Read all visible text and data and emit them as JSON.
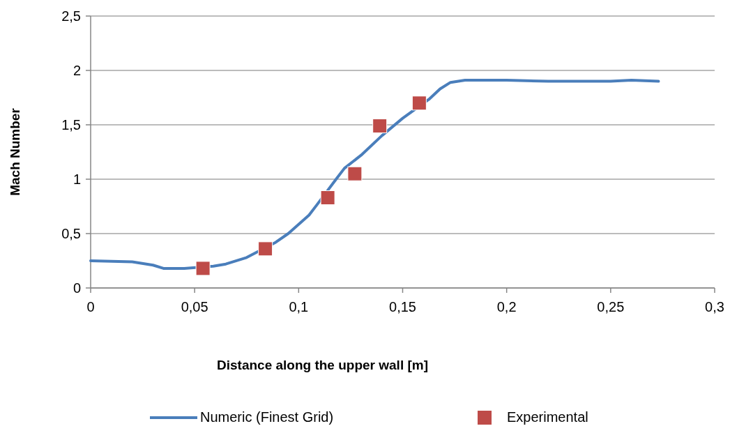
{
  "chart_data": {
    "type": "line",
    "xlabel": "Distance along the upper wall [m]",
    "ylabel": "Mach Number",
    "xlim": [
      0,
      0.3
    ],
    "ylim": [
      0,
      2.5
    ],
    "xticks": [
      0,
      {
        "value": 0.05,
        "label": "0,05"
      },
      {
        "value": 0.1,
        "label": "0,1"
      },
      {
        "value": 0.15,
        "label": "0,15"
      },
      {
        "value": 0.2,
        "label": "0,2"
      },
      {
        "value": 0.25,
        "label": "0,25"
      },
      {
        "value": 0.3,
        "label": "0,3"
      }
    ],
    "yticks": [
      0,
      {
        "value": 0.5,
        "label": "0,5"
      },
      1,
      {
        "value": 1.5,
        "label": "1,5"
      },
      2,
      {
        "value": 2.5,
        "label": "2,5"
      }
    ],
    "grid": "y",
    "legend": "bottom",
    "series": [
      {
        "name": "Numeric (Finest Grid)",
        "color": "#4a7ebb",
        "marker": "none",
        "x": [
          0,
          0.02,
          0.03,
          0.035,
          0.045,
          0.059,
          0.065,
          0.075,
          0.089,
          0.095,
          0.105,
          0.109,
          0.118,
          0.122,
          0.13,
          0.14,
          0.15,
          0.163,
          0.168,
          0.173,
          0.18,
          0.19,
          0.2,
          0.22,
          0.24,
          0.25,
          0.26,
          0.273
        ],
        "values": [
          0.25,
          0.24,
          0.21,
          0.18,
          0.18,
          0.2,
          0.22,
          0.28,
          0.42,
          0.5,
          0.67,
          0.77,
          1.0,
          1.1,
          1.22,
          1.4,
          1.56,
          1.74,
          1.83,
          1.89,
          1.91,
          1.91,
          1.91,
          1.9,
          1.9,
          1.9,
          1.91,
          1.9
        ]
      },
      {
        "name": "Experimental",
        "type": "scatter",
        "color": "#be4b48",
        "marker": "square",
        "x": [
          0.054,
          0.084,
          0.114,
          0.127,
          0.139,
          0.158
        ],
        "values": [
          0.18,
          0.36,
          0.83,
          1.05,
          1.49,
          1.7
        ]
      }
    ]
  }
}
